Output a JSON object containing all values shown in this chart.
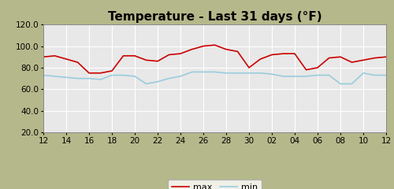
{
  "title": "Temperature - Last 31 days (°F)",
  "ylim": [
    20.0,
    120.0
  ],
  "xlim": [
    0,
    30
  ],
  "yticks": [
    20.0,
    40.0,
    60.0,
    80.0,
    100.0,
    120.0
  ],
  "background_outer": "#b5b88a",
  "background_inner": "#e8e8e8",
  "grid_color": "#ffffff",
  "line_max_color": "#cc0000",
  "line_min_color": "#99ccdd",
  "legend_bg": "#ffffff",
  "title_fontsize": 11,
  "tick_fontsize": 7.5,
  "xtick_labels": [
    "12",
    "14",
    "16",
    "18",
    "20",
    "22",
    "24",
    "26",
    "28",
    "30",
    "02",
    "04",
    "06",
    "08",
    "10",
    "12"
  ],
  "max_temps": [
    90,
    91,
    88,
    85,
    75,
    75,
    77,
    91,
    91,
    87,
    86,
    92,
    93,
    97,
    100,
    101,
    97,
    95,
    80,
    88,
    92,
    93,
    93,
    78,
    80,
    89,
    90,
    85,
    87,
    89,
    90
  ],
  "min_temps": [
    73,
    72,
    71,
    70,
    70,
    69,
    73,
    73,
    72,
    65,
    67,
    70,
    72,
    76,
    76,
    76,
    75,
    75,
    75,
    75,
    74,
    72,
    72,
    72,
    73,
    73,
    65,
    65,
    75,
    73,
    73
  ]
}
